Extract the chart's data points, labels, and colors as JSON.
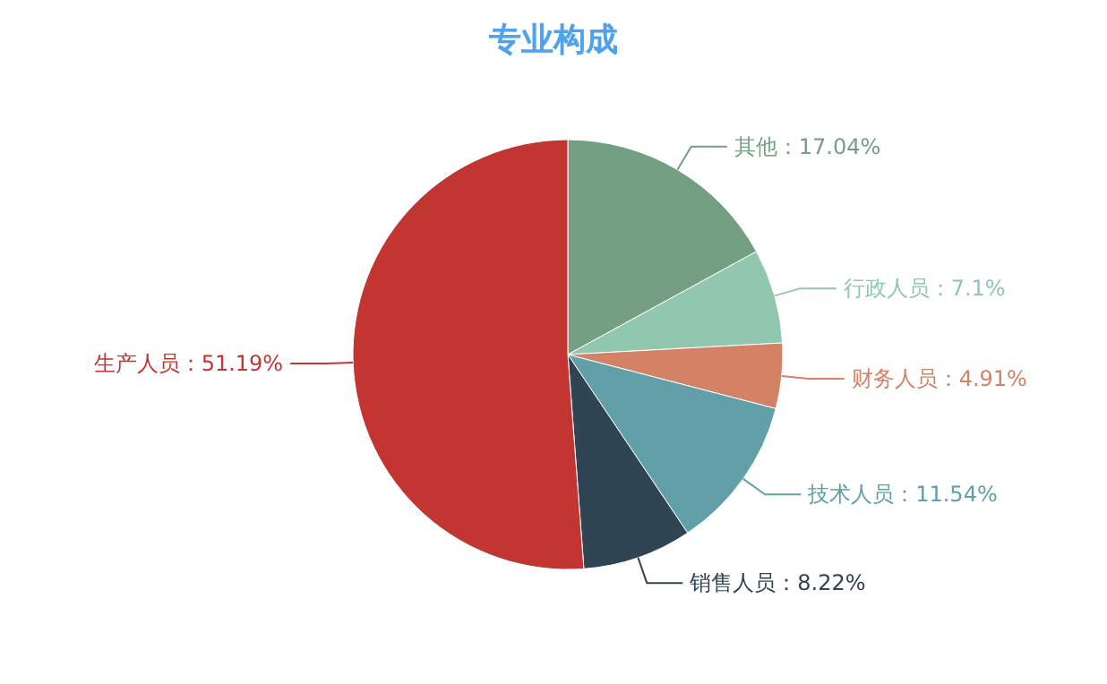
{
  "chart_data": {
    "type": "pie",
    "title": "专业构成",
    "categories": [
      "其他",
      "行政人员",
      "财务人员",
      "技术人员",
      "销售人员",
      "生产人员"
    ],
    "values": [
      17.04,
      7.1,
      4.91,
      11.54,
      8.22,
      51.19
    ],
    "value_labels": [
      "17.04%",
      "7.1%",
      "4.91%",
      "11.54%",
      "8.22%",
      "51.19%"
    ],
    "colors": [
      "#749f83",
      "#91c7ae",
      "#d48265",
      "#61a0a8",
      "#2f4554",
      "#c23531"
    ]
  }
}
